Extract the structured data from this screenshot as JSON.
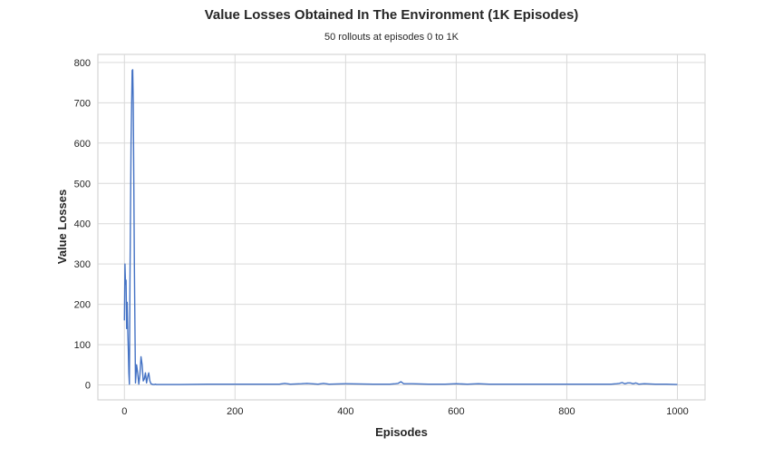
{
  "chart_data": {
    "type": "line",
    "title": "Value Losses Obtained In The Environment (1K Episodes)",
    "subtitle": "50 rollouts at episodes 0 to 1K",
    "xlabel": "Episodes",
    "ylabel": "Value Losses",
    "xlim": [
      -48,
      1050
    ],
    "ylim": [
      -37,
      820
    ],
    "xticks": [
      0,
      200,
      400,
      600,
      800,
      1000
    ],
    "yticks": [
      0,
      100,
      200,
      300,
      400,
      500,
      600,
      700,
      800
    ],
    "grid": true,
    "line_color": "#4472C4",
    "series": [
      {
        "x": [
          0,
          1,
          2,
          3,
          4,
          5,
          6,
          7,
          8,
          9,
          10,
          12,
          14,
          15,
          16,
          17,
          18,
          19,
          20,
          22,
          24,
          26,
          28,
          30,
          32,
          34,
          36,
          38,
          40,
          42,
          44,
          46,
          48,
          50,
          52,
          54,
          56,
          58,
          60,
          65,
          70,
          80,
          100,
          150,
          200,
          250,
          280,
          290,
          300,
          320,
          330,
          350,
          360,
          370,
          400,
          450,
          480,
          490,
          495,
          500,
          505,
          520,
          550,
          580,
          600,
          620,
          640,
          660,
          680,
          700,
          750,
          800,
          850,
          880,
          890,
          895,
          900,
          905,
          910,
          915,
          920,
          925,
          930,
          940,
          960,
          980,
          1000
        ],
        "y": [
          160,
          300,
          250,
          260,
          140,
          205,
          140,
          90,
          30,
          2,
          250,
          600,
          780,
          782,
          700,
          500,
          300,
          150,
          5,
          50,
          30,
          2,
          25,
          70,
          50,
          10,
          15,
          30,
          5,
          20,
          30,
          10,
          3,
          2,
          1,
          1,
          2,
          1,
          1,
          1,
          1,
          1,
          1,
          2,
          2,
          2,
          2,
          4,
          2,
          3,
          4,
          2,
          4,
          2,
          3,
          2,
          2,
          3,
          4,
          8,
          3,
          3,
          2,
          2,
          3,
          2,
          3,
          2,
          2,
          2,
          2,
          2,
          2,
          2,
          3,
          4,
          6,
          3,
          5,
          5,
          3,
          5,
          2,
          3,
          2,
          2,
          1
        ]
      }
    ]
  }
}
